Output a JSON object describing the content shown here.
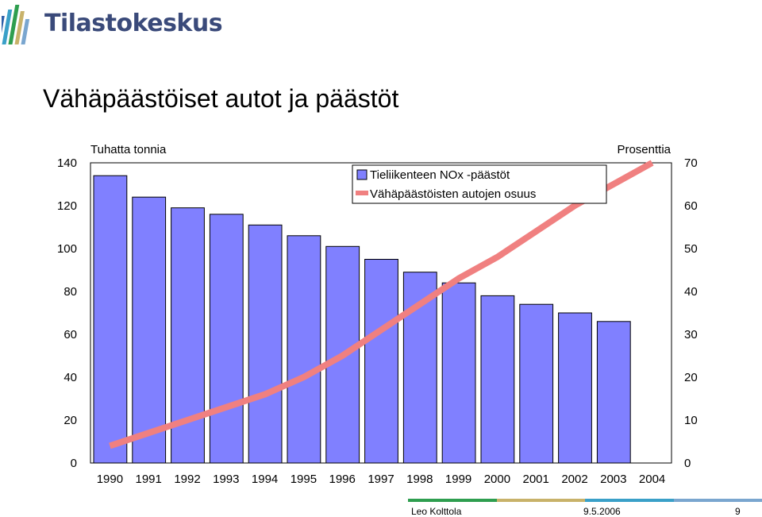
{
  "header": {
    "logo_text": "Tilastokeskus",
    "title": "Vähäpäästöiset autot ja päästöt"
  },
  "footer": {
    "author": "Leo Kolttola",
    "date": "9.5.2006",
    "page": "9",
    "bar_colors": [
      "#2e9e4f",
      "#c8b26a",
      "#3aa0c8",
      "#7aa6cf"
    ]
  },
  "chart_data": {
    "type": "bar",
    "categories": [
      "1990",
      "1991",
      "1992",
      "1993",
      "1994",
      "1995",
      "1996",
      "1997",
      "1998",
      "1999",
      "2000",
      "2001",
      "2002",
      "2003",
      "2004"
    ],
    "series": [
      {
        "name": "Tieliikenteen NOx -päästöt",
        "type": "bar",
        "axis": "left",
        "color": "#8080ff",
        "values": [
          134,
          124,
          119,
          116,
          111,
          106,
          101,
          95,
          89,
          84,
          78,
          74,
          70,
          66,
          null
        ]
      },
      {
        "name": "Vähäpäästöisten autojen osuus",
        "type": "line",
        "axis": "right",
        "color": "#f08080",
        "values": [
          4,
          7,
          10,
          13,
          16,
          20,
          25,
          31,
          37,
          43,
          48,
          54,
          60,
          65,
          70
        ]
      }
    ],
    "ylabel": "Tuhatta tonnia",
    "y2label": "Prosenttia",
    "ylim": [
      0,
      140
    ],
    "y2lim": [
      0,
      70
    ],
    "yticks": [
      0,
      20,
      40,
      60,
      80,
      100,
      120,
      140
    ],
    "y2ticks": [
      0,
      10,
      20,
      30,
      40,
      50,
      60,
      70
    ],
    "legend_position": "top-right",
    "grid": false
  }
}
